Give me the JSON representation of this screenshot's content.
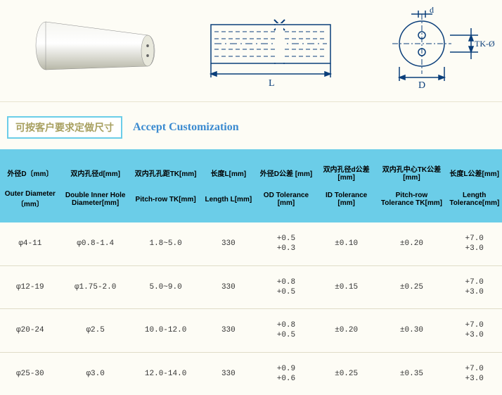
{
  "headings": {
    "cn": "可按客户要求定做尺寸",
    "en": "Accept Customization"
  },
  "diagram_labels": {
    "d": "d",
    "D": "D",
    "L": "L",
    "TK": "TK-Ø"
  },
  "colors": {
    "page_bg": "#fdfcf5",
    "header_bg": "#6bcde8",
    "border": "#e0dcc8",
    "heading_cn_text": "#a8a060",
    "heading_en_text": "#3a8ad0",
    "diagram_stroke": "#0a3e7a"
  },
  "columns": [
    {
      "cn": "外径D〔mm〕",
      "en": "Outer Diameter〔mm〕"
    },
    {
      "cn": "双内孔径d[mm]",
      "en": "Double Inner Hole Diameter[mm]"
    },
    {
      "cn": "双内孔孔距TK[mm]",
      "en": "Pitch-row TK[mm]"
    },
    {
      "cn": "长度L[mm]",
      "en": "Length L[mm]"
    },
    {
      "cn": "外径D公差 [mm]",
      "en": "OD Tolerance [mm]"
    },
    {
      "cn": "双内孔径d公差 [mm]",
      "en": "ID Tolerance [mm]"
    },
    {
      "cn": "双内孔中心TK公差 [mm]",
      "en": "Pitch-row Tolerance TK[mm]"
    },
    {
      "cn": "长度L公差[mm]",
      "en": "Length Tolerance[mm]"
    }
  ],
  "rows": [
    {
      "D": "φ4-11",
      "d": "φ0.8-1.4",
      "TK": "1.8~5.0",
      "L": "330",
      "ODtol": "+0.5\n+0.3",
      "IDtol": "±0.10",
      "TKtol": "±0.20",
      "Ltol": "+7.0\n+3.0"
    },
    {
      "D": "φ12-19",
      "d": "φ1.75-2.0",
      "TK": "5.0~9.0",
      "L": "330",
      "ODtol": "+0.8\n+0.5",
      "IDtol": "±0.15",
      "TKtol": "±0.25",
      "Ltol": "+7.0\n+3.0"
    },
    {
      "D": "φ20-24",
      "d": "φ2.5",
      "TK": "10.0-12.0",
      "L": "330",
      "ODtol": "+0.8\n+0.5",
      "IDtol": "±0.20",
      "TKtol": "±0.30",
      "Ltol": "+7.0\n+3.0"
    },
    {
      "D": "φ25-30",
      "d": "φ3.0",
      "TK": "12.0-14.0",
      "L": "330",
      "ODtol": "+0.9\n+0.6",
      "IDtol": "±0.25",
      "TKtol": "±0.35",
      "Ltol": "+7.0\n+3.0"
    }
  ]
}
